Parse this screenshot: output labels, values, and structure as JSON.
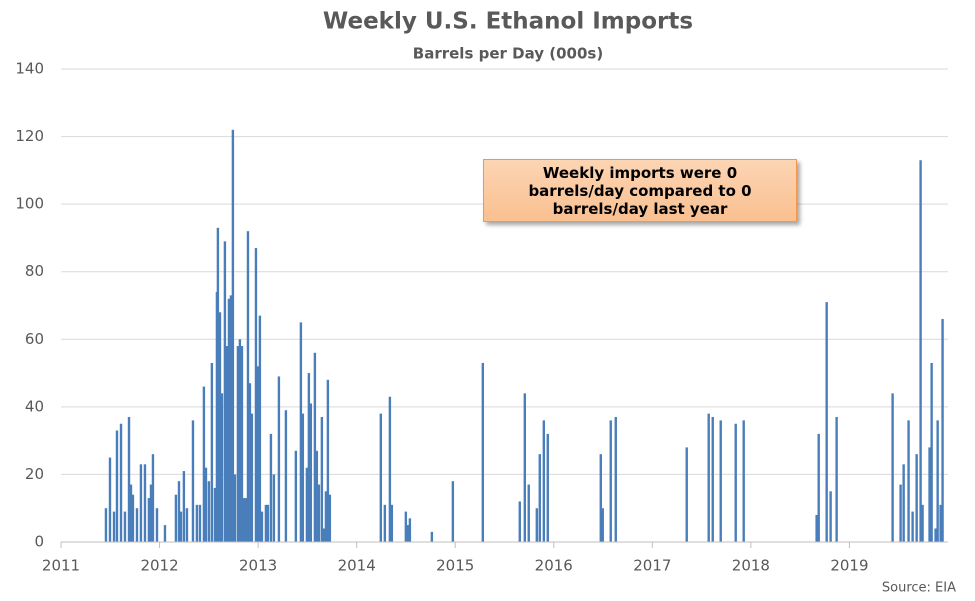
{
  "chart_data": {
    "type": "bar",
    "title": "Weekly U.S. Ethanol Imports",
    "subtitle": "Barrels per Day (000s)",
    "annotation": "Weekly imports were 0 barrels/day compared to 0 barrels/day last year",
    "source": "Source: EIA",
    "color": "#4a7ebb",
    "x": [
      2011.456,
      2011.497,
      2011.538,
      2011.568,
      2011.609,
      2011.649,
      2011.69,
      2011.71,
      2011.73,
      2011.771,
      2011.811,
      2011.852,
      2011.892,
      2011.913,
      2011.933,
      2011.974,
      2012.055,
      2012.166,
      2012.197,
      2012.217,
      2012.247,
      2012.278,
      2012.339,
      2012.379,
      2012.41,
      2012.45,
      2012.471,
      2012.501,
      2012.531,
      2012.562,
      2012.582,
      2012.592,
      2012.613,
      2012.633,
      2012.663,
      2012.684,
      2012.704,
      2012.724,
      2012.744,
      2012.765,
      2012.795,
      2012.815,
      2012.836,
      2012.856,
      2012.876,
      2012.897,
      2012.917,
      2012.937,
      2012.978,
      2012.998,
      2013.018,
      2013.039,
      2013.079,
      2013.099,
      2013.13,
      2013.16,
      2013.211,
      2013.282,
      2013.383,
      2013.434,
      2013.454,
      2013.495,
      2013.515,
      2013.535,
      2013.576,
      2013.596,
      2013.617,
      2013.647,
      2013.667,
      2013.688,
      2013.708,
      2013.728,
      2014.245,
      2014.286,
      2014.337,
      2014.357,
      2014.499,
      2014.519,
      2014.54,
      2014.763,
      2014.976,
      2015.28,
      2015.655,
      2015.706,
      2015.746,
      2015.828,
      2015.858,
      2015.899,
      2015.939,
      2016.477,
      2016.497,
      2016.578,
      2016.629,
      2017.349,
      2017.572,
      2017.613,
      2017.694,
      2017.846,
      2017.927,
      2018.667,
      2018.688,
      2018.769,
      2018.809,
      2018.87,
      2019.438,
      2019.519,
      2019.55,
      2019.6,
      2019.641,
      2019.682,
      2019.722,
      2019.742,
      2019.813,
      2019.834,
      2019.874,
      2019.895,
      2019.925,
      2019.945
    ],
    "values": [
      10,
      25,
      9,
      33,
      35,
      9,
      37,
      17,
      14,
      10,
      23,
      23,
      13,
      17,
      26,
      10,
      5,
      14,
      18,
      9,
      21,
      10,
      36,
      11,
      11,
      46,
      22,
      18,
      53,
      16,
      74,
      93,
      68,
      44,
      89,
      58,
      72,
      73,
      122,
      20,
      58,
      60,
      58,
      13,
      13,
      92,
      47,
      38,
      87,
      52,
      67,
      9,
      11,
      11,
      32,
      20,
      49,
      39,
      27,
      65,
      38,
      22,
      50,
      41,
      56,
      27,
      17,
      37,
      4,
      15,
      48,
      14,
      38,
      11,
      43,
      11,
      9,
      5,
      7,
      3,
      18,
      53,
      12,
      44,
      17,
      10,
      26,
      36,
      32,
      26,
      10,
      36,
      37,
      28,
      38,
      37,
      36,
      35,
      36,
      8,
      32,
      71,
      15,
      37,
      44,
      17,
      23,
      36,
      9,
      26,
      113,
      11,
      28,
      53,
      4,
      36,
      11,
      66
    ],
    "xlim": [
      2011,
      2020
    ],
    "xticks": [
      2011,
      2012,
      2013,
      2014,
      2015,
      2016,
      2017,
      2018,
      2019
    ],
    "ylim": [
      0,
      140
    ],
    "yticks": [
      0,
      20,
      40,
      60,
      80,
      100,
      120,
      140
    ],
    "grid": true
  }
}
